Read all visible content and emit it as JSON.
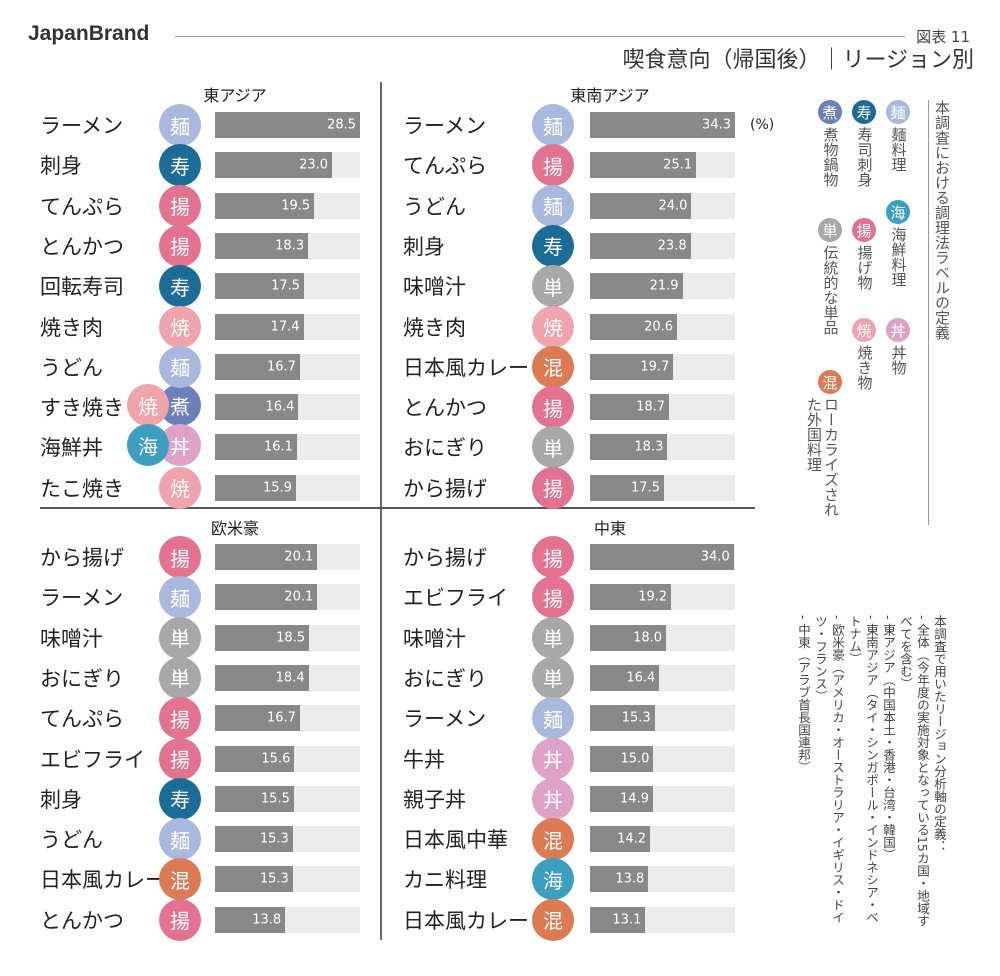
{
  "header": {
    "brand": "JapanBrand",
    "figure_no": "図表 11",
    "title": "喫食意向（帰国後）｜リージョン別"
  },
  "unit": "(%)",
  "icon_colors": {
    "麺": "#a9b9dd",
    "寿": "#1c6c98",
    "揚": "#e2728f",
    "焼": "#efa3ab",
    "煮": "#6b80ba",
    "丼": "#e0a1c7",
    "海": "#3c9ec0",
    "単": "#a8a8a8",
    "混": "#dc7b53"
  },
  "legend": {
    "title": "本調査における調理法ラベルの定義",
    "items": [
      {
        "icon": "麺",
        "label": "麺料理"
      },
      {
        "icon": "寿",
        "label": "寿司刺身"
      },
      {
        "icon": "煮",
        "label": "煮物鍋物"
      },
      {
        "icon": "海",
        "label": "海鮮料理"
      },
      {
        "icon": "揚",
        "label": "揚げ物"
      },
      {
        "icon": "単",
        "label": "伝統的な単品"
      },
      {
        "icon": "丼",
        "label": "丼物"
      },
      {
        "icon": "焼",
        "label": "焼き物"
      },
      {
        "icon": "混",
        "label": "ローカライズされた外国料理"
      }
    ]
  },
  "notes": {
    "title": "本調査で用いたリージョン分析軸の定義：",
    "items": [
      "- 全体（今年度の実施対象となっている15カ国・地域すべてを含む）",
      "- 東アジア（中国本土・香港・台湾・韓国）",
      "- 東南アジア（タイ・シンガポール・インドネシア・ベトナム）",
      "- 欧米豪（アメリカ・オーストラリア・イギリス・ドイツ・フランス）",
      "- 中東（アラブ首長国連邦）"
    ]
  },
  "chart_data": [
    {
      "type": "bar",
      "orientation": "horizontal",
      "title": "東アジア",
      "categories": [
        "ラーメン",
        "刺身",
        "てんぷら",
        "とんかつ",
        "回転寿司",
        "焼き肉",
        "うどん",
        "すき焼き",
        "海鮮丼",
        "たこ焼き"
      ],
      "values": [
        28.5,
        23.0,
        19.5,
        18.3,
        17.5,
        17.4,
        16.7,
        16.4,
        16.1,
        15.9
      ],
      "labels": [
        [
          "麺"
        ],
        [
          "寿"
        ],
        [
          "揚"
        ],
        [
          "揚"
        ],
        [
          "寿"
        ],
        [
          "焼"
        ],
        [
          "麺"
        ],
        [
          "焼",
          "煮"
        ],
        [
          "海",
          "丼"
        ],
        [
          "焼"
        ]
      ],
      "xlim": [
        0,
        28.5
      ]
    },
    {
      "type": "bar",
      "orientation": "horizontal",
      "title": "東南アジア",
      "categories": [
        "ラーメン",
        "てんぷら",
        "うどん",
        "刺身",
        "味噌汁",
        "焼き肉",
        "日本風カレー",
        "とんかつ",
        "おにぎり",
        "から揚げ"
      ],
      "values": [
        34.3,
        25.1,
        24.0,
        23.8,
        21.9,
        20.6,
        19.7,
        18.7,
        18.3,
        17.5
      ],
      "labels": [
        [
          "麺"
        ],
        [
          "揚"
        ],
        [
          "麺"
        ],
        [
          "寿"
        ],
        [
          "単"
        ],
        [
          "焼"
        ],
        [
          "混"
        ],
        [
          "揚"
        ],
        [
          "単"
        ],
        [
          "揚"
        ]
      ],
      "xlim": [
        0,
        34.3
      ]
    },
    {
      "type": "bar",
      "orientation": "horizontal",
      "title": "欧米豪",
      "categories": [
        "から揚げ",
        "ラーメン",
        "味噌汁",
        "おにぎり",
        "てんぷら",
        "エビフライ",
        "刺身",
        "うどん",
        "日本風カレー",
        "とんかつ"
      ],
      "values": [
        20.1,
        20.1,
        18.5,
        18.4,
        16.7,
        15.6,
        15.5,
        15.3,
        15.3,
        13.8
      ],
      "labels": [
        [
          "揚"
        ],
        [
          "麺"
        ],
        [
          "単"
        ],
        [
          "単"
        ],
        [
          "揚"
        ],
        [
          "揚"
        ],
        [
          "寿"
        ],
        [
          "麺"
        ],
        [
          "混"
        ],
        [
          "揚"
        ]
      ],
      "xlim": [
        0,
        28.5
      ]
    },
    {
      "type": "bar",
      "orientation": "horizontal",
      "title": "中東",
      "categories": [
        "から揚げ",
        "エビフライ",
        "味噌汁",
        "おにぎり",
        "ラーメン",
        "牛丼",
        "親子丼",
        "日本風中華",
        "カニ料理",
        "日本風カレー"
      ],
      "values": [
        34.0,
        19.2,
        18.0,
        16.4,
        15.3,
        15.0,
        14.9,
        14.2,
        13.8,
        13.1
      ],
      "labels": [
        [
          "揚"
        ],
        [
          "揚"
        ],
        [
          "単"
        ],
        [
          "単"
        ],
        [
          "麺"
        ],
        [
          "丼"
        ],
        [
          "丼"
        ],
        [
          "混"
        ],
        [
          "海"
        ],
        [
          "混"
        ]
      ],
      "xlim": [
        0,
        34.3
      ]
    }
  ]
}
